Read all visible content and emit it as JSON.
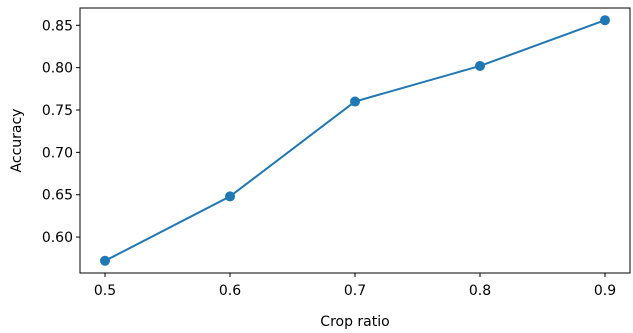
{
  "chart_data": {
    "type": "line",
    "title": "",
    "xlabel": "Crop ratio",
    "ylabel": "Accuracy",
    "x": [
      0.5,
      0.6,
      0.7,
      0.8,
      0.9
    ],
    "series": [
      {
        "values": [
          0.572,
          0.648,
          0.76,
          0.802,
          0.856
        ],
        "color": "#1f77b4"
      }
    ],
    "xticks": [
      0.5,
      0.6,
      0.7,
      0.8,
      0.9
    ],
    "xtick_labels": [
      "0.5",
      "0.6",
      "0.7",
      "0.8",
      "0.9"
    ],
    "yticks": [
      0.6,
      0.65,
      0.7,
      0.75,
      0.8,
      0.85
    ],
    "ytick_labels": [
      "0.60",
      "0.65",
      "0.70",
      "0.75",
      "0.80",
      "0.85"
    ],
    "xlim": [
      0.48,
      0.92
    ],
    "ylim": [
      0.5576,
      0.8704
    ],
    "grid": false,
    "marker": "circle"
  }
}
